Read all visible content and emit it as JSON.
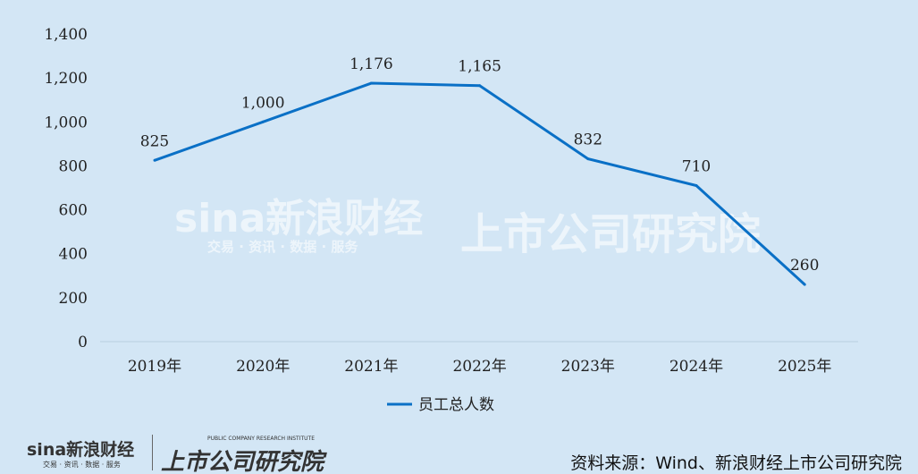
{
  "chart_data": {
    "type": "line",
    "categories": [
      "2019年",
      "2020年",
      "2021年",
      "2022年",
      "2023年",
      "2024年",
      "2025年"
    ],
    "series": [
      {
        "name": "员工总人数",
        "values": [
          825,
          1000,
          1176,
          1165,
          832,
          710,
          260
        ],
        "color": "#0a70c6"
      }
    ],
    "data_labels": [
      "825",
      "1,000",
      "1,176",
      "1,165",
      "832",
      "710",
      "260"
    ],
    "yticks": [
      "0",
      "200",
      "400",
      "600",
      "800",
      "1,000",
      "1,200",
      "1,400"
    ],
    "ylim": [
      0,
      1400
    ],
    "grid": false,
    "legend": "bottom"
  },
  "watermark": {
    "brand": "sina新浪财经",
    "tagline": "交易 · 资讯 · 数据 · 服务",
    "institute": "上市公司研究院",
    "institute_en": "PUBLIC COMPANY RESEARCH INSTITUTE"
  },
  "source": "资料来源：Wind、新浪财经上市公司研究院",
  "background": "#d3e6f5"
}
